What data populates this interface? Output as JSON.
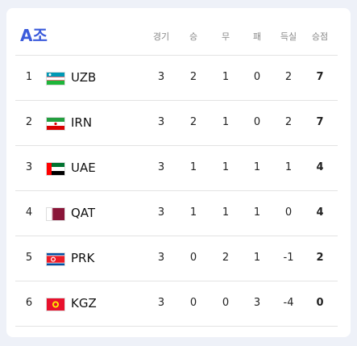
{
  "header": {
    "title": "A조"
  },
  "table": {
    "columns": [
      "경기",
      "승",
      "무",
      "패",
      "득실",
      "승점"
    ],
    "rows": [
      [
        1,
        "UZB",
        3,
        2,
        1,
        0,
        2,
        7
      ],
      [
        2,
        "IRN",
        3,
        2,
        1,
        0,
        2,
        7
      ],
      [
        3,
        "UAE",
        3,
        1,
        1,
        1,
        1,
        4
      ],
      [
        4,
        "QAT",
        3,
        1,
        1,
        1,
        0,
        4
      ],
      [
        5,
        "PRK",
        3,
        0,
        2,
        1,
        -1,
        2
      ],
      [
        6,
        "KGZ",
        3,
        0,
        0,
        3,
        -4,
        0
      ]
    ]
  }
}
